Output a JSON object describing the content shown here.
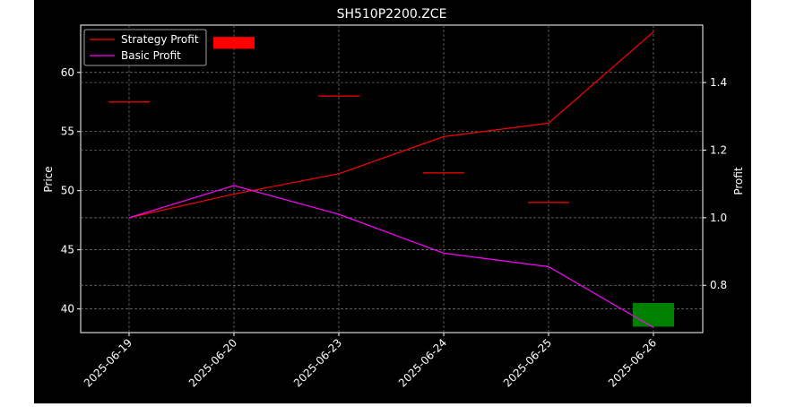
{
  "chart_data": {
    "type": "line",
    "title": "SH510P2200.ZCE",
    "xlabel": "",
    "ylabel_left": "Price",
    "ylabel_right": "Profit",
    "categories": [
      "2025-06-19",
      "2025-06-20",
      "2025-06-23",
      "2025-06-24",
      "2025-06-25",
      "2025-06-26"
    ],
    "ylim_left": [
      38.0,
      64.0
    ],
    "yticks_left": [
      40,
      45,
      50,
      55,
      60
    ],
    "ylim_right": [
      0.66,
      1.57
    ],
    "yticks_right": [
      0.8,
      1.0,
      1.2,
      1.4
    ],
    "grid": true,
    "legend_position": "top-left",
    "series": [
      {
        "name": "Strategy Profit",
        "axis": "right",
        "color": "#ff0000",
        "values": [
          1.0,
          1.07,
          1.13,
          1.24,
          1.28,
          1.55
        ]
      },
      {
        "name": "Basic Profit",
        "axis": "right",
        "color": "#ff00ff",
        "values": [
          1.0,
          1.095,
          1.01,
          0.895,
          0.855,
          0.675
        ]
      }
    ],
    "candles": [
      {
        "date": "2025-06-19",
        "open": 57.5,
        "close": 57.5,
        "color": "#ff0000"
      },
      {
        "date": "2025-06-20",
        "open": 62.0,
        "close": 63.0,
        "color": "#ff0000"
      },
      {
        "date": "2025-06-23",
        "open": 58.0,
        "close": 58.0,
        "color": "#ff0000"
      },
      {
        "date": "2025-06-24",
        "open": 51.5,
        "close": 51.5,
        "color": "#ff0000"
      },
      {
        "date": "2025-06-25",
        "open": 49.0,
        "close": 49.0,
        "color": "#ff0000"
      },
      {
        "date": "2025-06-26",
        "open": 40.5,
        "close": 38.5,
        "color": "#008000"
      }
    ]
  }
}
